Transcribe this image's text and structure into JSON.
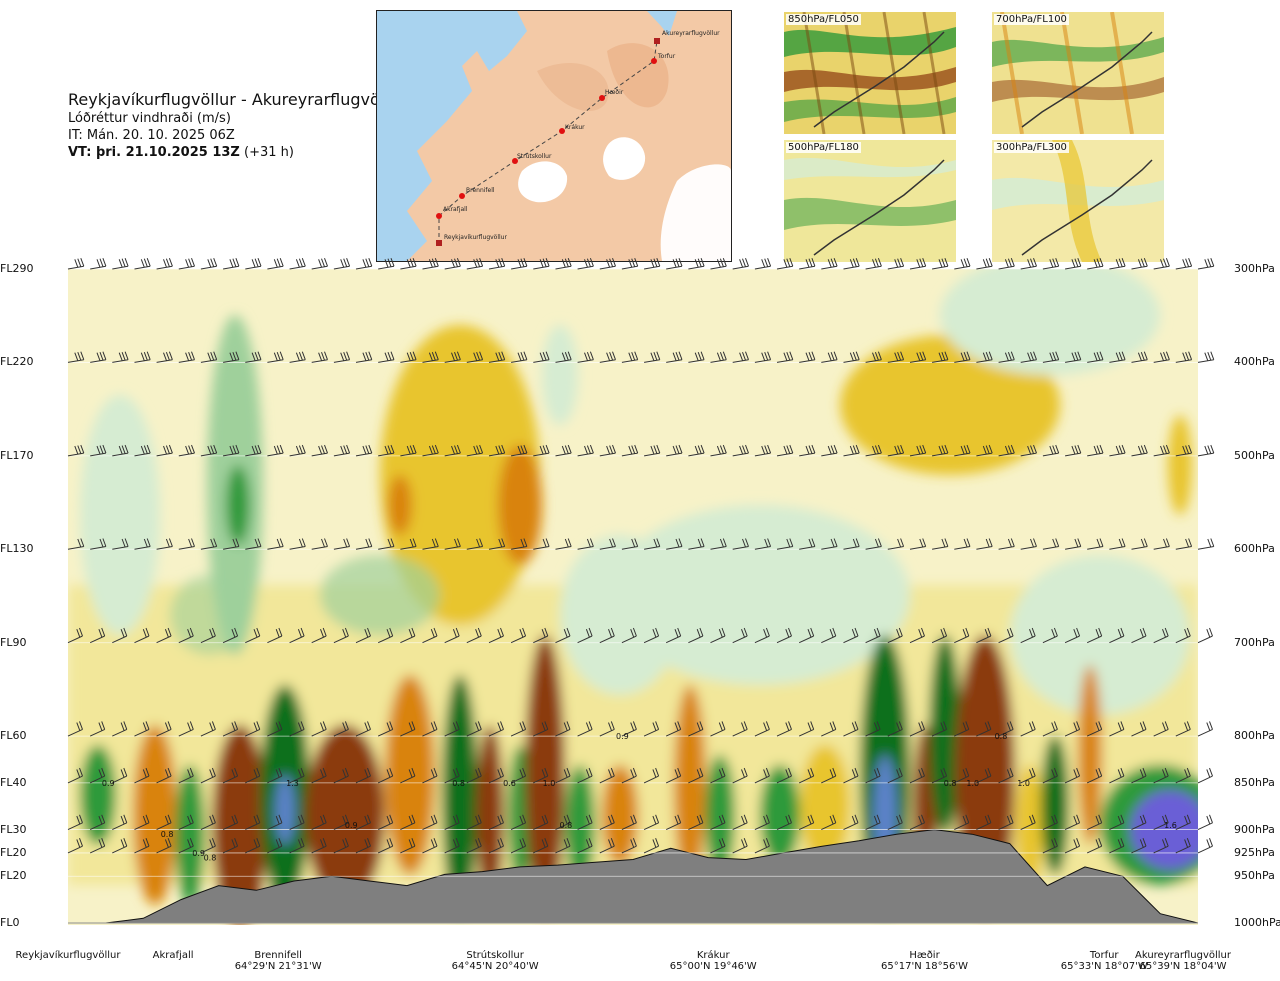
{
  "header": {
    "title": "Reykjavíkurflugvöllur - Akureyrarflugvöllur",
    "subtitle": "Lóðréttur vindhraði (m/s)",
    "it_line": "IT: Mán. 20. 10. 2025 06Z",
    "vt_prefix": "VT: þri. 21.10.2025 13Z",
    "vt_suffix": " (+31 h)"
  },
  "map": {
    "route_points": [
      "Akureyrarflugvöllur",
      "Torfur",
      "Hæðir",
      "Krákur",
      "Strútskollur",
      "Brennifell",
      "Akrafjall",
      "Reykjavíkurflugvöllur"
    ]
  },
  "mini_maps": [
    {
      "label": "850hPa/FL050"
    },
    {
      "label": "700hPa/FL100"
    },
    {
      "label": "500hPa/FL180"
    },
    {
      "label": "300hPa/FL300"
    }
  ],
  "colors": {
    "strong_down": "#8b3a10",
    "down": "#d9830f",
    "weak_down": "#e8c52e",
    "slight_down": "#f2e79a",
    "neutral": "#f7f2c8",
    "slight_up": "#d6ecd2",
    "up": "#9fd09b",
    "strong_up": "#2f9a3a",
    "very_strong_up": "#0b6f1f",
    "extreme_up": "#5b82c9",
    "terrain": "#7f7f7f"
  },
  "chart_data": {
    "type": "heatmap",
    "title": "Reykjavíkurflugvöllur - Akureyrarflugvöllur",
    "variable": "Lóðréttur vindhraði (m/s)",
    "levels_left": [
      "FL290",
      "FL220",
      "FL170",
      "FL130",
      "FL90",
      "FL60",
      "FL40",
      "FL30",
      "FL20",
      "FL20",
      "FL0"
    ],
    "levels_right": [
      "300hPa",
      "400hPa",
      "500hPa",
      "600hPa",
      "700hPa",
      "800hPa",
      "850hPa",
      "900hPa",
      "925hPa",
      "950hPa",
      "1000hPa"
    ],
    "pressure_hpa": [
      300,
      400,
      500,
      600,
      700,
      800,
      850,
      900,
      925,
      950,
      1000
    ],
    "x_locations": [
      {
        "name": "Reykjavíkurflugvöllur",
        "coord": "",
        "frac": 0.0
      },
      {
        "name": "Akrafjall",
        "coord": "",
        "frac": 0.093
      },
      {
        "name": "Brennifell",
        "coord": "64°29'N 21°31'W",
        "frac": 0.186
      },
      {
        "name": "Strútskollur",
        "coord": "64°45'N 20°40'W",
        "frac": 0.378
      },
      {
        "name": "Krákur",
        "coord": "65°00'N 19°46'W",
        "frac": 0.571
      },
      {
        "name": "Hæðir",
        "coord": "65°17'N 18°56'W",
        "frac": 0.758
      },
      {
        "name": "Torfur",
        "coord": "65°33'N 18°07'W",
        "frac": 0.948
      },
      {
        "name": "Akureyrarflugvöllur",
        "coord": "65°39'N 18°04'W",
        "frac": 1.0
      }
    ],
    "annotations": [
      "0.9",
      "0.8",
      "0.9",
      "1.3",
      "0.8",
      "0.9",
      "0.8",
      "0.6",
      "1.0",
      "0.9",
      "0.8",
      "0.8",
      "1.0",
      "0.8",
      "1.0",
      "1.6"
    ],
    "terrain_height_hpa": [
      1000,
      1000,
      995,
      975,
      960,
      965,
      955,
      950,
      955,
      960,
      948,
      945,
      940,
      938,
      935,
      932,
      920,
      930,
      932,
      925,
      918,
      912,
      905,
      900,
      905,
      915,
      960,
      940,
      950,
      990,
      1000
    ]
  }
}
